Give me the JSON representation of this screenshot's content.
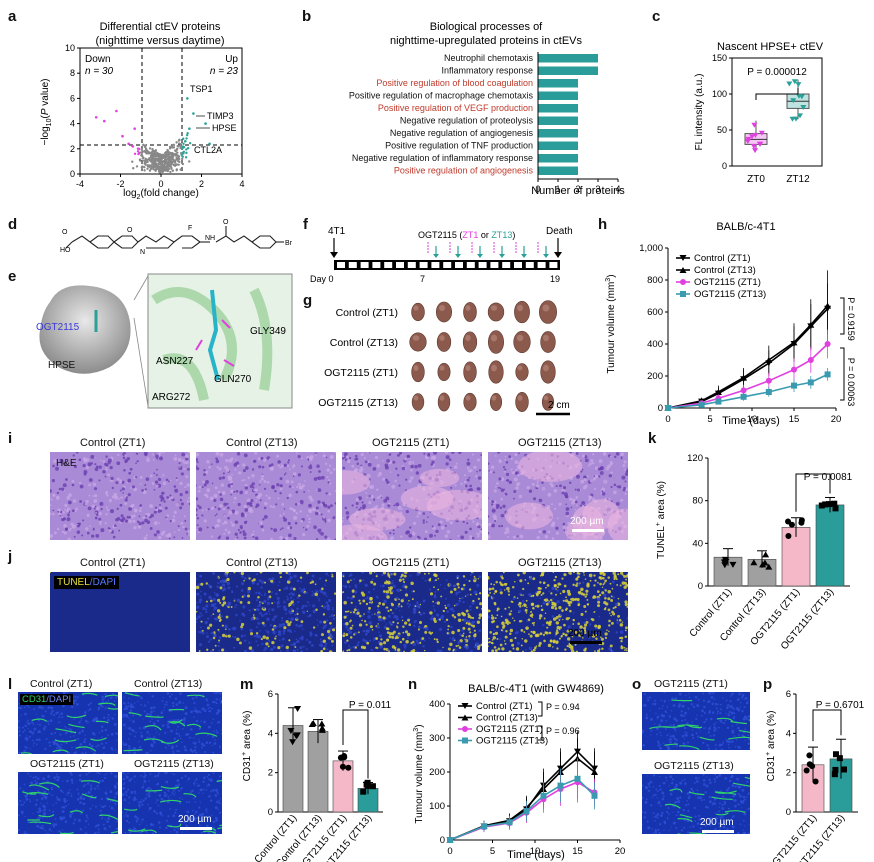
{
  "panel_letters": [
    "a",
    "b",
    "c",
    "d",
    "e",
    "f",
    "g",
    "h",
    "i",
    "j",
    "k",
    "l",
    "m",
    "n",
    "o",
    "p"
  ],
  "a": {
    "title": "Differential ctEV proteins",
    "subtitle": "(nighttime versus daytime)",
    "down_label": "Down",
    "down_n": "n = 30",
    "up_label": "Up",
    "up_n": "n = 23",
    "xlabel": "log2(fold change)",
    "ylabel": "−log10(P value)",
    "proteins": [
      "TSP1",
      "TIMP3",
      "HPSE",
      "CTL2A"
    ],
    "colors": {
      "down": "#e040e0",
      "up": "#2aa198",
      "ns": "#888888"
    }
  },
  "b": {
    "title_line1": "Biological processes of",
    "title_line2": "nighttime-upregulated proteins in ctEVs",
    "xlabel": "Number of proteins",
    "bar_color": "#2a9d9a"
  },
  "c": {
    "title": "Nascent HPSE+ ctEV",
    "pvalue": "P = 0.000012",
    "ylabel": "FL intensity (a.u.)"
  },
  "e": {
    "labels": [
      "OGT2115",
      "HPSE",
      "ASN227",
      "GLY349",
      "GLN270",
      "ARG272"
    ]
  },
  "f": {
    "start": "4T1",
    "drug": "OGT2115 (ZT1 or ZT13)",
    "drug_a": "OGT2115 (",
    "drug_b": "ZT1",
    "drug_c": " or ",
    "drug_d": "ZT13",
    "drug_e": ")",
    "end": "Death",
    "day_label": "Day 0",
    "d7": "7",
    "d19": "19"
  },
  "g": {
    "rows": [
      "Control (ZT1)",
      "Control (ZT13)",
      "OGT2115 (ZT1)",
      "OGT2115 (ZT13)"
    ],
    "scale": "2 cm"
  },
  "h": {
    "title": "BALB/c-4T1",
    "xlabel": "Time (days)",
    "ylabel": "Tumour volume (mm3)",
    "legend": [
      "Control (ZT1)",
      "Control (ZT13)",
      "OGT2115 (ZT1)",
      "OGT2115 (ZT13)"
    ],
    "p1": "P = 0.9159",
    "p2": "P = 0.00063"
  },
  "i": {
    "titles": [
      "Control (ZT1)",
      "Control (ZT13)",
      "OGT2115 (ZT1)",
      "OGT2115 (ZT13)"
    ],
    "stain": "H&E",
    "scale": "200 µm"
  },
  "j": {
    "titles": [
      "Control (ZT1)",
      "Control (ZT13)",
      "OGT2115 (ZT1)",
      "OGT2115 (ZT13)"
    ],
    "stain_a": "TUNEL",
    "stain_b": "/DAPI",
    "scale": "200 µm"
  },
  "k": {
    "ylabel": "TUNEL+ area (%)",
    "pvalue": "P = 0.0081",
    "categories": [
      "Control (ZT1)",
      "Control (ZT13)",
      "OGT2115 (ZT1)",
      "OGT2115 (ZT13)"
    ]
  },
  "l": {
    "titles": [
      "Control (ZT1)",
      "Control (ZT13)",
      "OGT2115 (ZT1)",
      "OGT2115 (ZT13)"
    ],
    "stain_a": "CD31",
    "stain_b": "/DAPI",
    "scale": "200 µm"
  },
  "m": {
    "ylabel": "CD31+ area (%)",
    "pvalue": "P = 0.011",
    "categories": [
      "Control (ZT1)",
      "Control (ZT13)",
      "OGT2115 (ZT1)",
      "OGT2115 (ZT13)"
    ]
  },
  "n": {
    "title": "BALB/c-4T1 (with GW4869)",
    "xlabel": "Time (days)",
    "ylabel": "Tumour volume (mm3)",
    "legend": [
      "Control (ZT1)",
      "Control (ZT13)",
      "OGT2115 (ZT1)",
      "OGT2115 (ZT13)"
    ],
    "p1": "P = 0.94",
    "p2": "P = 0.96"
  },
  "o": {
    "titles": [
      "OGT2115 (ZT1)",
      "OGT2115 (ZT13)"
    ],
    "scale": "200 µm"
  },
  "p": {
    "ylabel": "CD31+ area (%)",
    "pvalue": "P = 0.6701",
    "categories": [
      "OGT2115 (ZT1)",
      "OGT2115 (ZT13)"
    ]
  },
  "chart_data": [
    {
      "id": "a",
      "type": "scatter",
      "xlim": [
        -4,
        4
      ],
      "ylim": [
        0,
        10
      ],
      "xticks": [
        -4,
        -2,
        0,
        2,
        4
      ],
      "yticks": [
        0,
        2,
        4,
        6,
        8,
        10
      ]
    },
    {
      "id": "b",
      "type": "bar",
      "orientation": "horizontal",
      "categories": [
        "Neutrophil chemotaxis",
        "Inflammatory response",
        "Positive regulation of blood coagulation",
        "Positive regulation of macrophage chemotaxis",
        "Positive regulation of VEGF production",
        "Negative regulation of proteolysis",
        "Negative regulation of angiogenesis",
        "Positive regulation of TNF production",
        "Negative regulation of inflammatory response",
        "Positive regulation of angiogenesis"
      ],
      "highlight": [
        false,
        false,
        true,
        false,
        true,
        false,
        false,
        false,
        false,
        true
      ],
      "values": [
        3,
        3,
        2,
        2,
        2,
        2,
        2,
        2,
        2,
        2
      ],
      "xlim": [
        0,
        4
      ],
      "xticks": [
        0,
        1,
        2,
        3,
        4
      ]
    },
    {
      "id": "c",
      "type": "box",
      "categories": [
        "ZT0",
        "ZT12"
      ],
      "medians": [
        37,
        90
      ],
      "q1": [
        30,
        80
      ],
      "q3": [
        45,
        100
      ],
      "min": [
        22,
        65
      ],
      "max": [
        63,
        120
      ],
      "ylim": [
        0,
        150
      ],
      "yticks": [
        0,
        50,
        100,
        150
      ]
    },
    {
      "id": "h",
      "type": "line",
      "x": [
        0,
        4,
        6,
        9,
        12,
        15,
        17,
        19
      ],
      "xlim": [
        0,
        20
      ],
      "ylim": [
        0,
        1000
      ],
      "xticks": [
        0,
        5,
        10,
        15,
        20
      ],
      "yticks": [
        0,
        200,
        400,
        600,
        800,
        1000
      ],
      "series": [
        {
          "name": "Control (ZT1)",
          "values": [
            0,
            40,
            90,
            180,
            280,
            400,
            510,
            620
          ],
          "err": [
            0,
            20,
            40,
            60,
            80,
            110,
            140,
            160
          ]
        },
        {
          "name": "Control (ZT13)",
          "values": [
            0,
            45,
            100,
            190,
            300,
            410,
            520,
            640
          ],
          "err": [
            0,
            20,
            40,
            60,
            90,
            120,
            160,
            220
          ]
        },
        {
          "name": "OGT2115 (ZT1)",
          "values": [
            0,
            30,
            60,
            110,
            170,
            240,
            300,
            400
          ],
          "err": [
            0,
            15,
            25,
            35,
            50,
            70,
            80,
            90
          ]
        },
        {
          "name": "OGT2115 (ZT13)",
          "values": [
            0,
            20,
            40,
            70,
            100,
            140,
            160,
            210
          ],
          "err": [
            0,
            10,
            15,
            25,
            30,
            40,
            40,
            40
          ]
        }
      ]
    },
    {
      "id": "k",
      "type": "bar",
      "categories": [
        "Control (ZT1)",
        "Control (ZT13)",
        "OGT2115 (ZT1)",
        "OGT2115 (ZT13)"
      ],
      "values": [
        27,
        25,
        55,
        76
      ],
      "err": [
        8,
        8,
        9,
        7
      ],
      "ylim": [
        0,
        120
      ],
      "yticks": [
        0,
        40,
        80,
        120
      ]
    },
    {
      "id": "m",
      "type": "bar",
      "categories": [
        "Control (ZT1)",
        "Control (ZT13)",
        "OGT2115 (ZT1)",
        "OGT2115 (ZT13)"
      ],
      "values": [
        4.4,
        4.1,
        2.6,
        1.2
      ],
      "err": [
        0.9,
        0.6,
        0.5,
        0.3
      ],
      "ylim": [
        0,
        6
      ],
      "yticks": [
        0,
        2,
        4,
        6
      ]
    },
    {
      "id": "n",
      "type": "line",
      "x": [
        0,
        4,
        7,
        9,
        11,
        13,
        15,
        17
      ],
      "xlim": [
        0,
        20
      ],
      "ylim": [
        0,
        400
      ],
      "xticks": [
        0,
        5,
        10,
        15,
        20
      ],
      "yticks": [
        0,
        100,
        200,
        300,
        400
      ],
      "series": [
        {
          "name": "Control (ZT1)",
          "values": [
            0,
            40,
            55,
            90,
            160,
            210,
            260,
            210
          ],
          "err": [
            0,
            15,
            20,
            35,
            50,
            60,
            60,
            60
          ]
        },
        {
          "name": "Control (ZT13)",
          "values": [
            0,
            42,
            58,
            95,
            150,
            200,
            240,
            200
          ],
          "err": [
            0,
            15,
            20,
            35,
            50,
            60,
            60,
            60
          ]
        },
        {
          "name": "OGT2115 (ZT1)",
          "values": [
            0,
            38,
            50,
            80,
            120,
            150,
            170,
            140
          ],
          "err": [
            0,
            15,
            20,
            30,
            40,
            50,
            60,
            40
          ]
        },
        {
          "name": "OGT2115 (ZT13)",
          "values": [
            0,
            40,
            52,
            85,
            130,
            160,
            180,
            130
          ],
          "err": [
            0,
            15,
            20,
            30,
            40,
            50,
            60,
            40
          ]
        }
      ]
    },
    {
      "id": "p",
      "type": "bar",
      "categories": [
        "OGT2115 (ZT1)",
        "OGT2115 (ZT13)"
      ],
      "values": [
        2.4,
        2.7
      ],
      "err": [
        0.9,
        1.0
      ],
      "ylim": [
        0,
        6
      ],
      "yticks": [
        0,
        2,
        4,
        6
      ]
    }
  ]
}
